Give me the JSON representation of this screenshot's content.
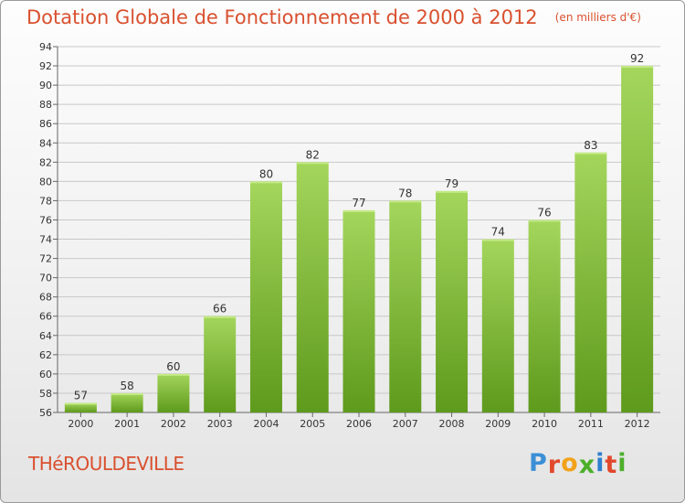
{
  "header": {
    "title": "Dotation Globale de Fonctionnement de 2000 à 2012",
    "unit_note": "(en milliers d'€)"
  },
  "footer": {
    "commune": "THéROULDEVILLE",
    "brand": "Proxiti",
    "brand_letter_colors": [
      "#3b8fd6",
      "#e2482c",
      "#f2a21a",
      "#4caf2a",
      "#2f7fcf",
      "#e2482c",
      "#4caf2a"
    ]
  },
  "colors": {
    "title": "#d9502f",
    "bar_top": "#a4d65c",
    "bar_bottom": "#5e9a1c",
    "grid": "#c8c8c8",
    "axis_text": "#333333"
  },
  "chart_data": {
    "type": "bar",
    "title": "Dotation Globale de Fonctionnement de 2000 à 2012",
    "subtitle": "(en milliers d'€)",
    "categories": [
      "2000",
      "2001",
      "2002",
      "2003",
      "2004",
      "2005",
      "2006",
      "2007",
      "2008",
      "2009",
      "2010",
      "2011",
      "2012"
    ],
    "values": [
      57,
      58,
      60,
      66,
      80,
      82,
      77,
      78,
      79,
      74,
      76,
      83,
      92
    ],
    "ylim": [
      56,
      94
    ],
    "ytick_step": 2,
    "grid": true,
    "legend": "none",
    "xlabel": "",
    "ylabel": ""
  }
}
